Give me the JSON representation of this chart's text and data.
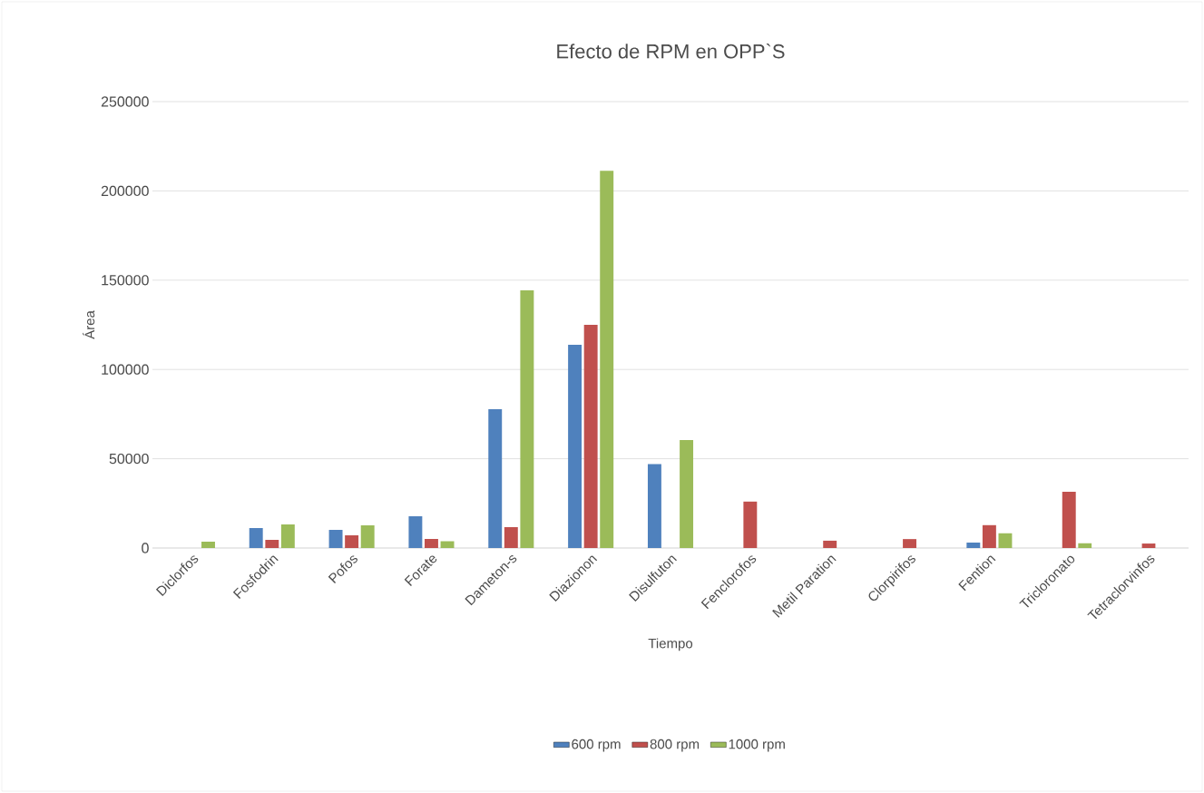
{
  "chart_data": {
    "type": "bar",
    "title": "Efecto de RPM en OPP`S",
    "xlabel": "Tiempo",
    "ylabel": "Área",
    "categories": [
      "Diclorfos",
      "Fosfodrin",
      "Pofos",
      "Forate",
      "Dameton-s",
      "Diazionon",
      "Disulfuton",
      "Fenclorofos",
      "Metil Paration",
      "Clorpirifos",
      "Fention",
      "Tricloronato",
      "Tetraclorvinfos"
    ],
    "series": [
      {
        "name": "600 rpm",
        "color": "#4f81bd",
        "values": [
          null,
          11200,
          10200,
          17800,
          77700,
          113800,
          47000,
          null,
          null,
          null,
          3000,
          null,
          null
        ]
      },
      {
        "name": "800 rpm",
        "color": "#c0504d",
        "values": [
          null,
          4600,
          7100,
          5100,
          11700,
          125000,
          null,
          26000,
          4100,
          5000,
          12800,
          31500,
          2500
        ]
      },
      {
        "name": "1000 rpm",
        "color": "#9bbb59",
        "values": [
          3500,
          13200,
          12700,
          3800,
          144300,
          211300,
          60500,
          null,
          null,
          null,
          8200,
          2700,
          null
        ]
      }
    ],
    "ylim": [
      0,
      250000
    ],
    "yticks": [
      0,
      50000,
      100000,
      150000,
      200000,
      250000
    ],
    "grid": "y",
    "legend": "bottom"
  }
}
